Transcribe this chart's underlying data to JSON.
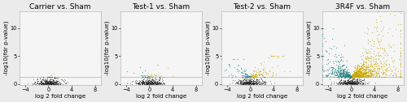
{
  "panels": [
    {
      "title": "Carrier vs. Sham",
      "n_nonsig": 400,
      "n_up": 3,
      "n_down": 3,
      "up_x_scale": 0.3,
      "up_y_max": 2.0,
      "dn_x_scale": 0.3,
      "dn_y_max": 2.0,
      "up_color": "#c8a800",
      "down_color": "#2e8b8a",
      "nonsig_color": "#1a1a1a",
      "seed": 10
    },
    {
      "title": "Test-1 vs. Sham",
      "n_nonsig": 400,
      "n_up": 25,
      "n_down": 20,
      "up_x_scale": 1.0,
      "up_y_max": 3.5,
      "dn_x_scale": 0.8,
      "dn_y_max": 3.5,
      "up_color": "#c8a800",
      "down_color": "#2e8b8a",
      "nonsig_color": "#1a1a1a",
      "seed": 20
    },
    {
      "title": "Test-2 vs. Sham",
      "n_nonsig": 400,
      "n_up": 110,
      "n_down": 80,
      "up_x_scale": 1.5,
      "up_y_max": 5.0,
      "dn_x_scale": 1.0,
      "dn_y_max": 4.5,
      "up_color": "#c8a800",
      "down_color": "#2e8b8a",
      "nonsig_color": "#1a1a1a",
      "seed": 30
    },
    {
      "title": "3R4F vs. Sham",
      "n_nonsig": 400,
      "n_up": 900,
      "n_down": 500,
      "up_x_scale": 2.5,
      "up_y_max": 13.0,
      "dn_x_scale": 1.5,
      "dn_y_max": 10.0,
      "up_color": "#c8a800",
      "down_color": "#2e8b8a",
      "nonsig_color": "#1a1a1a",
      "seed": 40
    }
  ],
  "xlim": [
    -5,
    9
  ],
  "ylim": [
    -0.2,
    13
  ],
  "xticks": [
    -4,
    0,
    4,
    8
  ],
  "yticks": [
    0,
    5,
    10
  ],
  "xlabel": "log 2 fold change",
  "ylabel": "-log10(fdr p-value)",
  "sig_threshold": 1.3,
  "background_color": "#ebebeb",
  "plot_bg": "#f5f5f5",
  "title_fontsize": 6.5,
  "label_fontsize": 5.2,
  "tick_fontsize": 4.8
}
